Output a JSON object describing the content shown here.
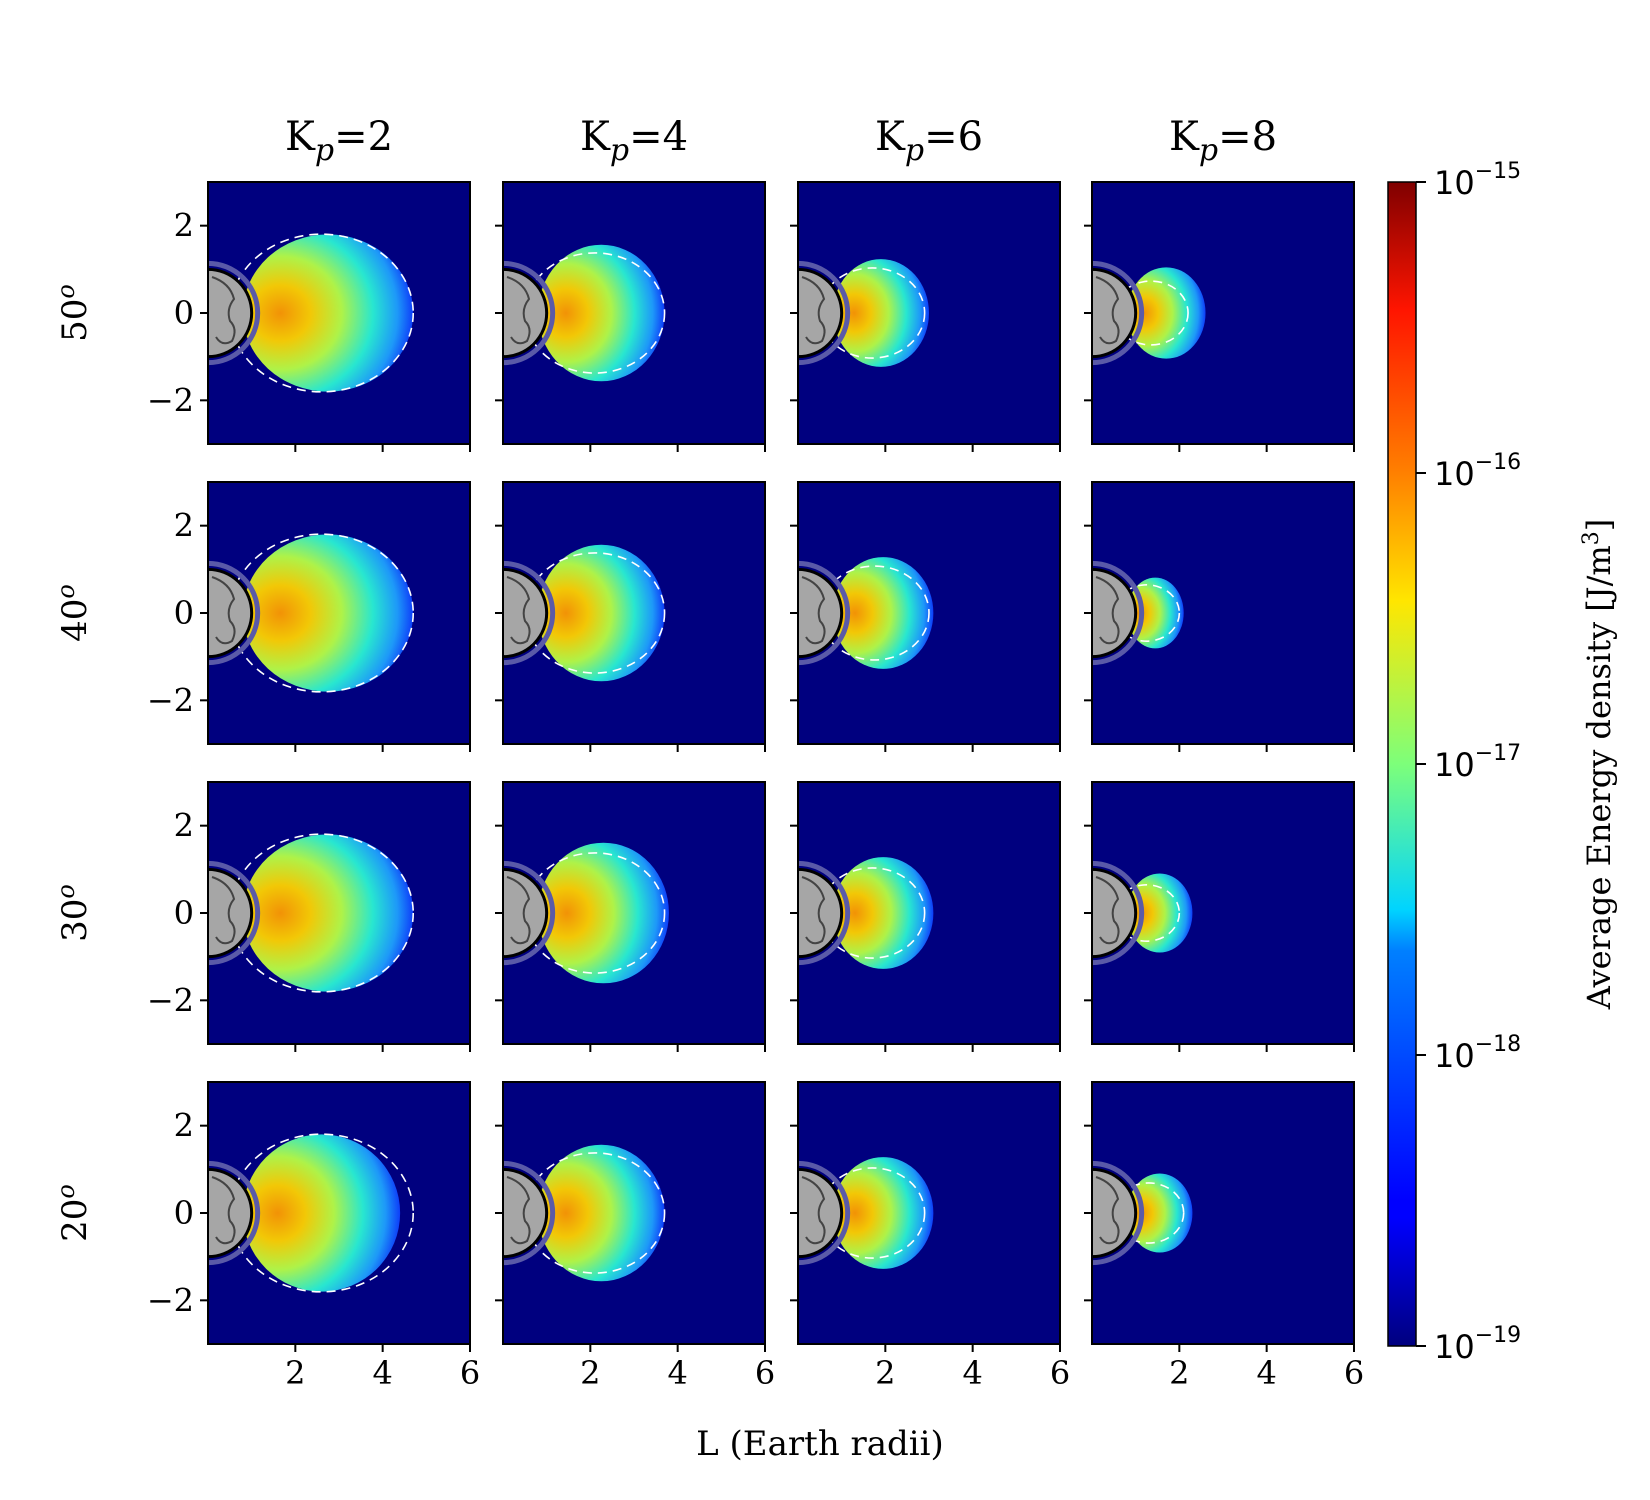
{
  "chart_data": {
    "type": "heatmap",
    "column_titles": [
      {
        "main": "K",
        "sub": "p",
        "rest": "=2"
      },
      {
        "main": "K",
        "sub": "p",
        "rest": "=4"
      },
      {
        "main": "K",
        "sub": "p",
        "rest": "=6"
      },
      {
        "main": "K",
        "sub": "p",
        "rest": "=8"
      }
    ],
    "row_labels": [
      {
        "value": "50",
        "sup": "o"
      },
      {
        "value": "40",
        "sup": "o"
      },
      {
        "value": "30",
        "sup": "o"
      },
      {
        "value": "20",
        "sup": "o"
      }
    ],
    "xlabel": "L (Earth radii)",
    "xlim": [
      0,
      6
    ],
    "ylim": [
      -3,
      3
    ],
    "x_ticks": [
      2,
      4,
      6
    ],
    "y_ticks": [
      2,
      0,
      -2
    ],
    "colorbar": {
      "label_main": "Average Energy density [J/m",
      "label_sup": "3",
      "label_end": "]",
      "scale": "log",
      "range": [
        1e-19,
        1e-15
      ],
      "colormap": "jet",
      "ticks": [
        {
          "base": "10",
          "exp": "−15",
          "value": 1e-15
        },
        {
          "base": "10",
          "exp": "−16",
          "value": 1e-16
        },
        {
          "base": "10",
          "exp": "−17",
          "value": 1e-17
        },
        {
          "base": "10",
          "exp": "−18",
          "value": 1e-18
        },
        {
          "base": "10",
          "exp": "−19",
          "value": 1e-19
        }
      ]
    },
    "panels_boundary_L": [
      [
        4.7,
        3.7,
        3.0,
        2.6
      ],
      [
        4.7,
        3.7,
        3.1,
        2.1
      ],
      [
        4.7,
        3.8,
        3.1,
        2.3
      ],
      [
        4.4,
        3.7,
        3.1,
        2.3
      ]
    ],
    "dashed_ellipse_L": [
      [
        4.7,
        3.7,
        2.9,
        2.2
      ],
      [
        4.7,
        3.7,
        3.0,
        2.0
      ],
      [
        4.7,
        3.7,
        2.9,
        2.0
      ],
      [
        4.7,
        3.7,
        2.9,
        2.1
      ]
    ],
    "background_color": "#00007f",
    "earth_color": "#a6a6a6"
  }
}
